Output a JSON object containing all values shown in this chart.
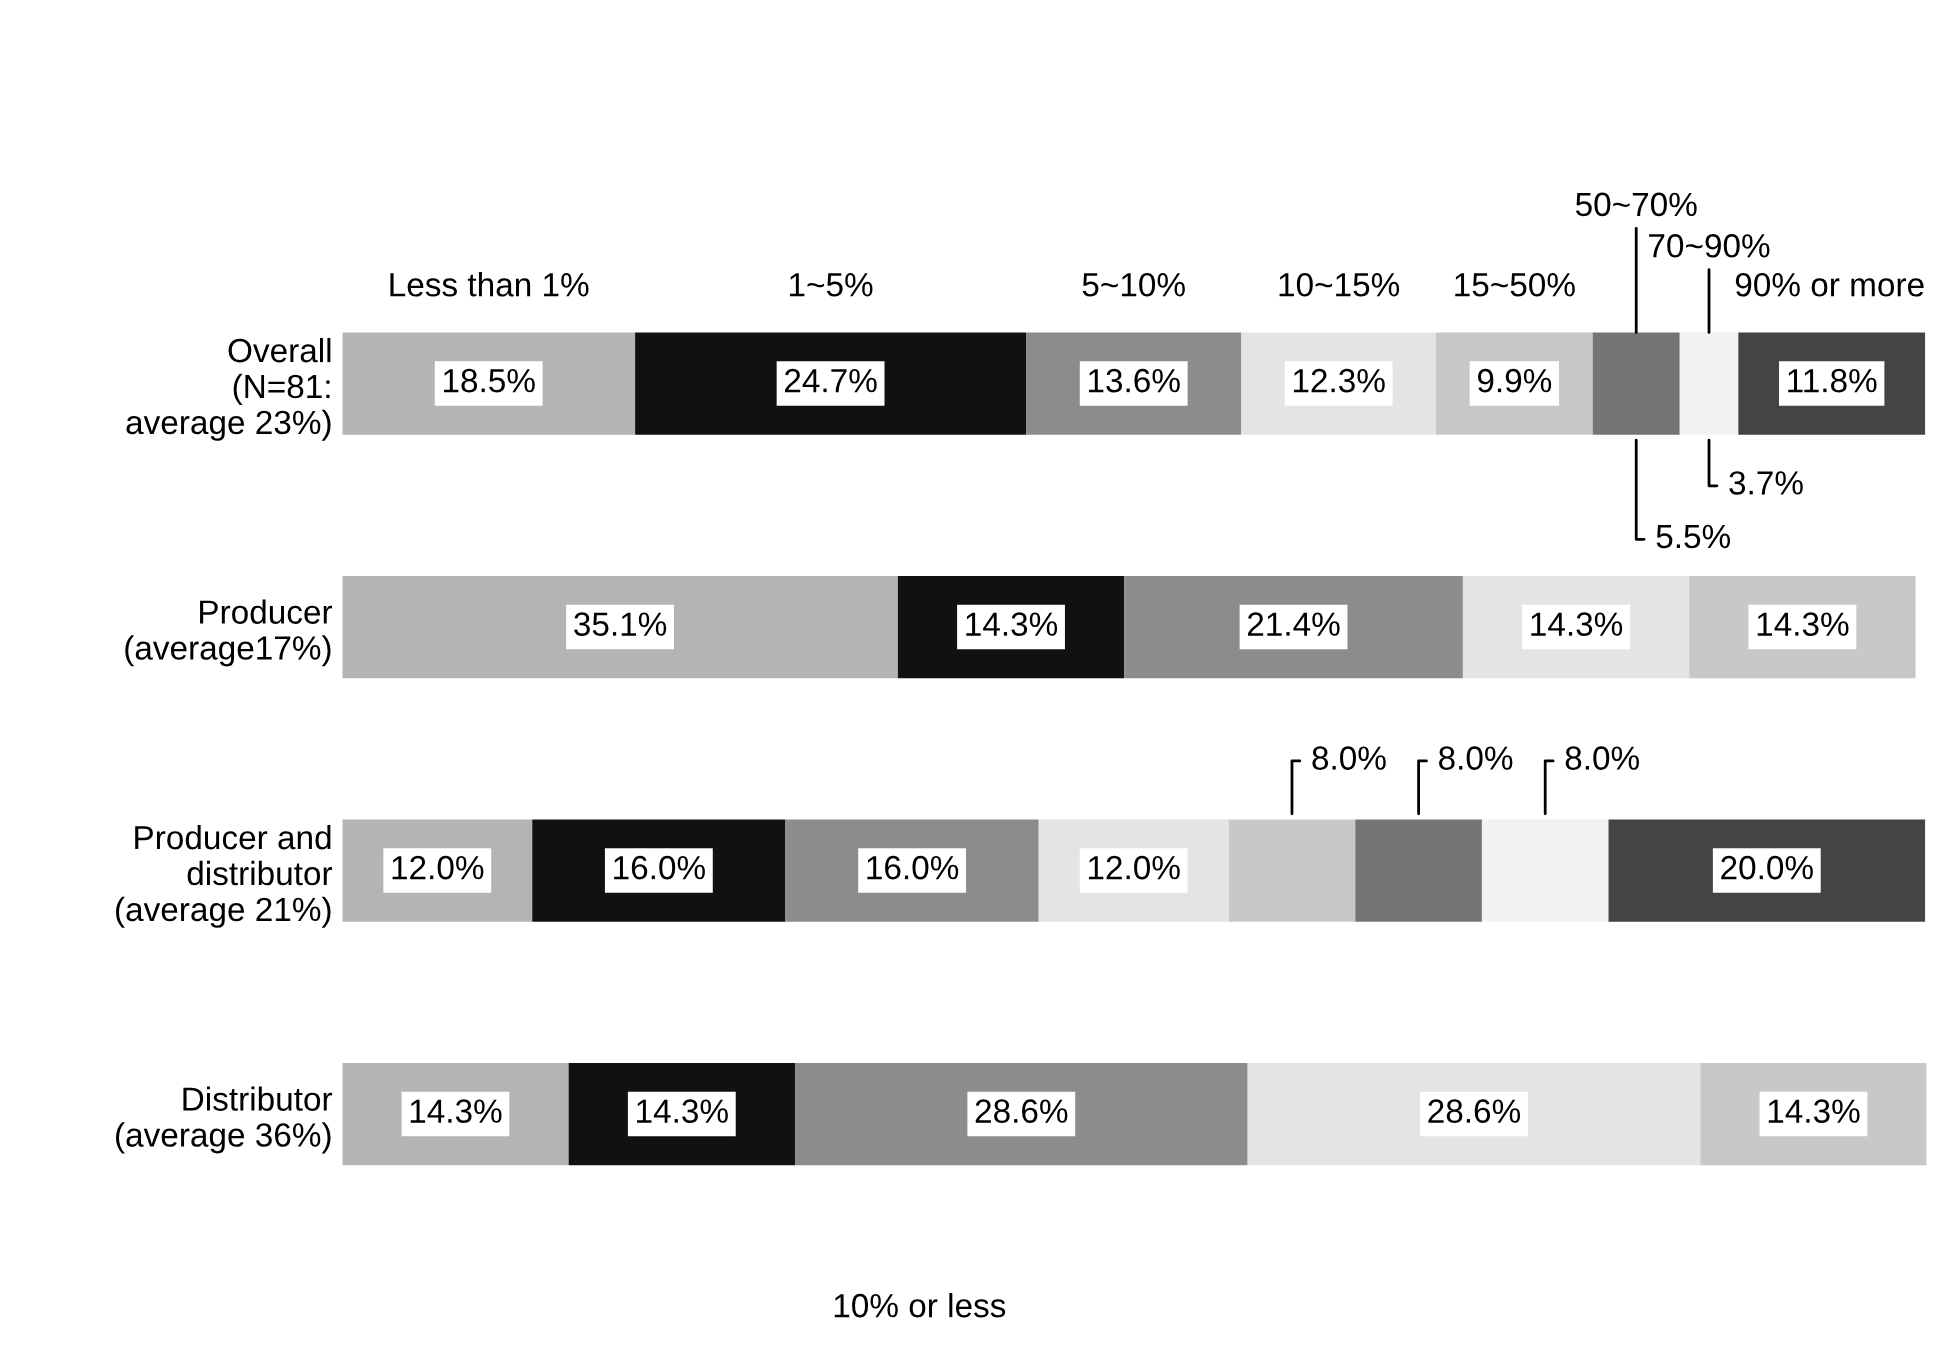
{
  "chart_data": {
    "type": "bar",
    "orientation": "horizontal",
    "stacked": true,
    "legend": "top",
    "grid": false,
    "tick_labels": "y",
    "categories": [
      "Overall\n(N=81:\n average 23%)",
      "Producer\n(average17%)",
      "Producer and\ndistributor\n(average 21%)",
      "Distributor\n(average 36%)"
    ],
    "series": [
      {
        "name": "Less than 1%",
        "color": "#b4b4b4",
        "values": [
          18.5,
          35.1,
          12.0,
          14.3
        ],
        "value_labels": [
          "18.5%",
          "35.1%",
          "12.0%",
          "14.3%"
        ]
      },
      {
        "name": "1~5%",
        "color": "#111111",
        "values": [
          24.7,
          14.3,
          16.0,
          14.3
        ],
        "value_labels": [
          "24.7%",
          "14.3%",
          "16.0%",
          "14.3%"
        ]
      },
      {
        "name": "5~10%",
        "color": "#8c8c8c",
        "values": [
          13.6,
          21.4,
          16.0,
          28.6
        ],
        "value_labels": [
          "13.6%",
          "21.4%",
          "16.0%",
          "28.6%"
        ]
      },
      {
        "name": "10~15%",
        "color": "#e4e4e4",
        "values": [
          12.3,
          14.3,
          12.0,
          28.6
        ],
        "value_labels": [
          "12.3%",
          "14.3%",
          "12.0%",
          "28.6%"
        ]
      },
      {
        "name": "15~50%",
        "color": "#c8c8c8",
        "values": [
          9.9,
          14.3,
          8.0,
          14.3
        ],
        "value_labels": [
          "9.9%",
          "14.3%",
          "8.0%",
          "14.3%"
        ]
      },
      {
        "name": "50~70%",
        "color": "#747474",
        "values": [
          5.5,
          null,
          8.0,
          null
        ],
        "value_labels": [
          "5.5%",
          null,
          "8.0%",
          null
        ]
      },
      {
        "name": "70~90%",
        "color": "#f2f2f2",
        "values": [
          3.7,
          null,
          8.0,
          null
        ],
        "value_labels": [
          "3.7%",
          null,
          "8.0%",
          null
        ]
      },
      {
        "name": "90% or more",
        "color": "#444444",
        "values": [
          11.8,
          null,
          20.0,
          null
        ],
        "value_labels": [
          "11.8%",
          null,
          "20.0%",
          null
        ]
      }
    ],
    "annotations": [
      "10% or less"
    ]
  }
}
